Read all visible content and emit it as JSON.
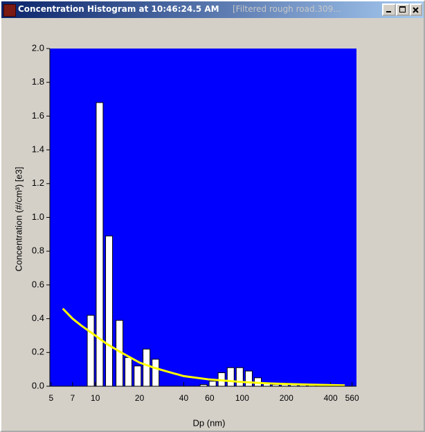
{
  "window": {
    "title": "Concentration Histogram at 10:46:24.5 AM",
    "file": "[Filtered rough road.309..."
  },
  "chart_data": {
    "type": "bar",
    "x_label": "Dp (nm)",
    "y_label": "Concentration (#/cm³) [e3]",
    "x": [
      9.3,
      10.7,
      12.4,
      14.6,
      16.8,
      19.4,
      22.3,
      25.7,
      54.6,
      62.9,
      72.4,
      83.5,
      96.2,
      110.9,
      127.8,
      147,
      169,
      195,
      225,
      259,
      298,
      344,
      396,
      457
    ],
    "values": [
      0.42,
      1.68,
      0.89,
      0.39,
      0.17,
      0.12,
      0.22,
      0.16,
      0.01,
      0.03,
      0.08,
      0.11,
      0.11,
      0.09,
      0.05,
      0.02,
      0.01,
      0.01,
      0.01,
      0.01,
      0.01,
      0.005,
      0.005,
      0.005
    ],
    "color": "#ffffff",
    "background": "#0000ff",
    "fit_line": {
      "type": "line",
      "color": "#ffff00",
      "x": [
        6,
        7,
        8,
        10,
        12,
        15,
        20,
        25,
        30,
        40,
        60,
        100,
        150,
        200,
        300,
        500
      ],
      "values": [
        0.46,
        0.4,
        0.36,
        0.3,
        0.25,
        0.2,
        0.14,
        0.11,
        0.09,
        0.06,
        0.04,
        0.025,
        0.017,
        0.013,
        0.009,
        0.005
      ]
    },
    "log_x": true,
    "xlim": [
      4.9,
      600
    ],
    "ylim": [
      0,
      2
    ],
    "xticks": [
      5,
      7,
      10,
      20,
      40,
      60,
      100,
      200,
      400,
      560
    ],
    "yticks": [
      {
        "value": 0,
        "label": "0.0"
      },
      0.2,
      0.4,
      0.6,
      0.8,
      {
        "value": 1,
        "label": "1.0"
      },
      1.2,
      1.4,
      1.6,
      1.8,
      {
        "value": 2,
        "label": "2.0"
      }
    ]
  }
}
